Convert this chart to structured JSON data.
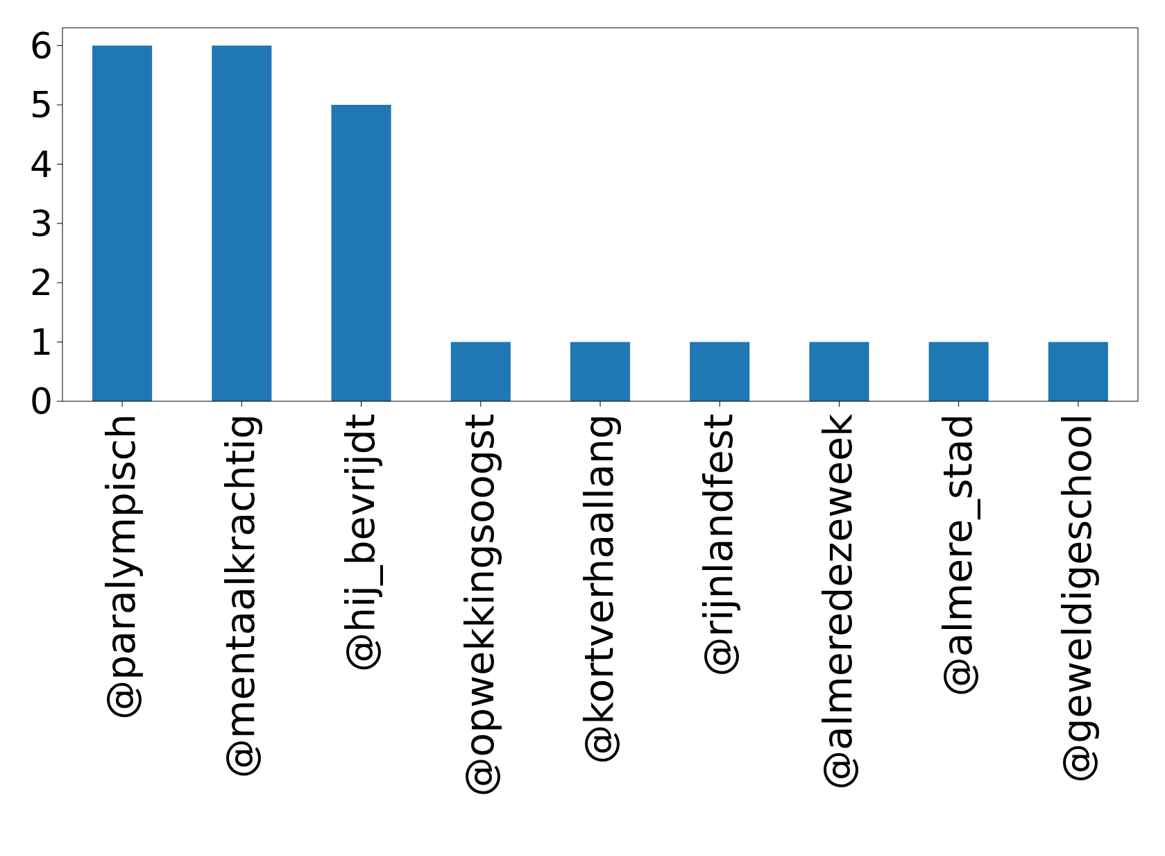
{
  "chart_data": {
    "type": "bar",
    "categories": [
      "@paralympisch",
      "@mentaalkrachtig",
      "@hij_bevrijdt",
      "@opwekkingsoogst",
      "@kortverhaallang",
      "@rijnlandfest",
      "@almeredezeweek",
      "@almere_stad",
      "@geweldigeschool"
    ],
    "values": [
      6,
      6,
      5,
      1,
      1,
      1,
      1,
      1,
      1
    ],
    "color": "#1f77b4",
    "ylim": [
      0,
      6.3
    ],
    "yticks": [
      0,
      1,
      2,
      3,
      4,
      5,
      6
    ],
    "grid": false
  }
}
